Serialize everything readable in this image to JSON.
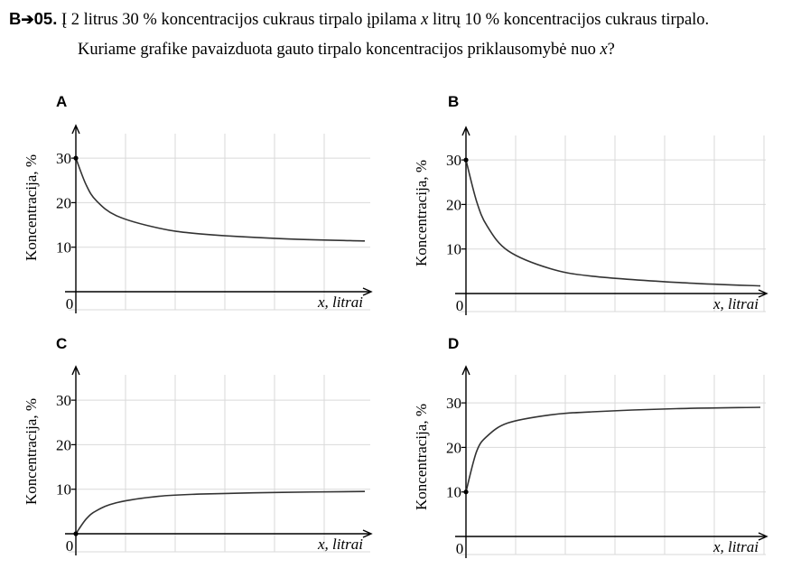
{
  "question": {
    "number": "B",
    "number_suffix": "05.",
    "line1_a": "Į 2 litrus 30 % koncentracijos cukraus tirpalo įpilama ",
    "line1_var": "x",
    "line1_b": " litrų 10 % koncentracijos cukraus tirpalo.",
    "line2_a": "Kuriame grafike pavaizduota gauto tirpalo koncentracijos priklausomybė nuo ",
    "line2_var": "x",
    "line2_b": "?"
  },
  "colors": {
    "ink": "#000000",
    "grid": "#d9d9d9",
    "curve": "#333333"
  },
  "chart_data": [
    {
      "panel": "A",
      "type": "line",
      "ylabel": "Koncentracija, %",
      "xlabel": "x, litrai",
      "yticks": [
        30,
        20,
        10
      ],
      "origin_label": "0",
      "ylim": [
        0,
        30
      ],
      "grid": true,
      "marked_point": [
        0,
        30
      ],
      "series": [
        {
          "x": [
            0,
            0.5,
            1,
            2,
            4,
            6,
            10,
            14
          ],
          "y": [
            30,
            24,
            20.4,
            17,
            14.3,
            13,
            11.9,
            11.4
          ]
        }
      ]
    },
    {
      "panel": "B",
      "type": "line",
      "ylabel": "Koncentracija, %",
      "xlabel": "x, litrai",
      "yticks": [
        30,
        20,
        10
      ],
      "origin_label": "0",
      "ylim": [
        0,
        30
      ],
      "grid": true,
      "marked_point": [
        0,
        30
      ],
      "series": [
        {
          "x": [
            0,
            0.5,
            1,
            2,
            4,
            6,
            10,
            14
          ],
          "y": [
            30,
            20.8,
            15.2,
            9.6,
            5.6,
            3.9,
            2.5,
            1.7
          ]
        }
      ]
    },
    {
      "panel": "C",
      "type": "line",
      "ylabel": "Koncentracija, %",
      "xlabel": "x, litrai",
      "yticks": [
        30,
        20,
        10
      ],
      "origin_label": "0",
      "ylim": [
        0,
        30
      ],
      "grid": true,
      "marked_point": [
        0,
        0
      ],
      "series": [
        {
          "x": [
            0,
            0.5,
            1,
            2,
            4,
            6,
            10,
            14
          ],
          "y": [
            0,
            3.3,
            5.2,
            7,
            8.4,
            8.9,
            9.3,
            9.5
          ]
        }
      ]
    },
    {
      "panel": "D",
      "type": "line",
      "ylabel": "Koncentracija, %",
      "xlabel": "x, litrai",
      "yticks": [
        30,
        20,
        10
      ],
      "origin_label": "0",
      "ylim": [
        0,
        30
      ],
      "grid": true,
      "marked_point": [
        0,
        10
      ],
      "series": [
        {
          "x": [
            0,
            0.5,
            1,
            2,
            4,
            6,
            10,
            14
          ],
          "y": [
            10,
            19,
            22.5,
            25.5,
            27.3,
            28,
            28.7,
            29
          ]
        }
      ]
    }
  ]
}
